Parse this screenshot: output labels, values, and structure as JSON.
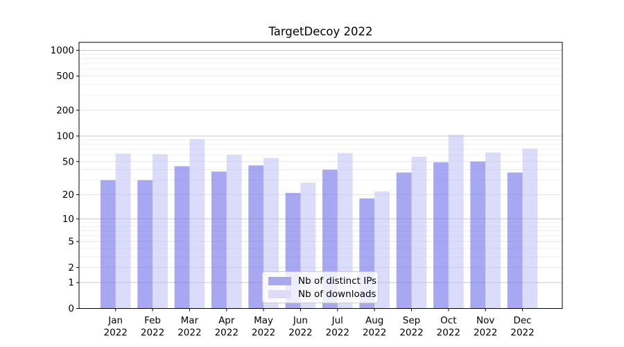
{
  "chart_data": {
    "type": "bar",
    "title": "TargetDecoy 2022",
    "categories": [
      "Jan",
      "Feb",
      "Mar",
      "Apr",
      "May",
      "Jun",
      "Jul",
      "Aug",
      "Sep",
      "Oct",
      "Nov",
      "Dec"
    ],
    "category_year": "2022",
    "series": [
      {
        "name": "Nb of distinct IPs",
        "bar_color": "rgba(120,120,235,0.65)",
        "legend_color": "#a8a8ef",
        "values": [
          30,
          30,
          44,
          38,
          45,
          21,
          40,
          18,
          37,
          49,
          50,
          37
        ]
      },
      {
        "name": "Nb of downloads",
        "bar_color": "rgba(190,190,245,0.55)",
        "legend_color": "#dcdcf8",
        "values": [
          62,
          61,
          92,
          60,
          55,
          28,
          63,
          22,
          57,
          103,
          64,
          71
        ]
      }
    ],
    "xlabel": "",
    "ylabel": "",
    "y_scale": "log10(value+1)",
    "y_ticks": [
      0,
      1,
      2,
      5,
      10,
      20,
      50,
      100,
      200,
      500,
      1000
    ],
    "y_tick_labels": [
      "0",
      "1",
      "2",
      "5",
      "10",
      "20",
      "50",
      "100",
      "200",
      "500",
      "1000"
    ],
    "y_minor_ticks": [
      3,
      4,
      6,
      7,
      8,
      9,
      30,
      40,
      60,
      70,
      80,
      90,
      300,
      400,
      600,
      700,
      800,
      900
    ],
    "ylim": [
      0,
      1250
    ],
    "grid": true,
    "legend_position": "lower center",
    "colors": {
      "major_grid": "#c8c8c8",
      "mid_grid": "#e4e4e4",
      "minor_grid": "#efefef",
      "spine": "#000000",
      "tick_text": "#000000"
    }
  }
}
